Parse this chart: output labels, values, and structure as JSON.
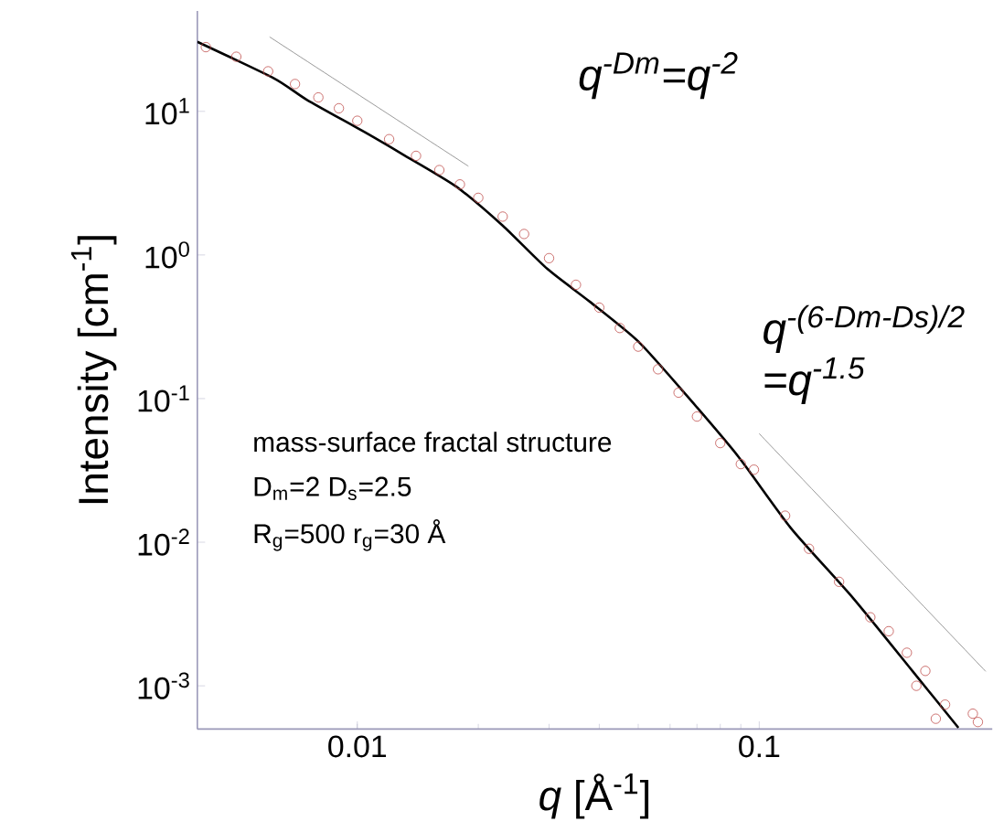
{
  "chart_data": {
    "type": "scatter",
    "xlabel": "*q* [Å$^{-1}$]",
    "ylabel": "Intensity [cm$^{-1}$]",
    "log": "xy",
    "grid": false,
    "xlim": [
      0.004,
      0.38
    ],
    "ylim": [
      0.0005,
      50
    ],
    "xticks": [
      0.01,
      0.1
    ],
    "yticks": [
      {
        "value": 0.001,
        "label": "10$^{-3}$"
      },
      {
        "value": 0.01,
        "label": "10$^{-2}$"
      },
      {
        "value": 0.1,
        "label": "10$^{-1}$"
      },
      {
        "value": 1,
        "label": "10$^{0}$"
      },
      {
        "value": 10,
        "label": "10$^{1}$"
      }
    ],
    "series": [
      {
        "marker": "circle",
        "color": "#c0504d",
        "x": [
          0.0042,
          0.005,
          0.006,
          0.007,
          0.008,
          0.009,
          0.01,
          0.012,
          0.014,
          0.016,
          0.018,
          0.02,
          0.023,
          0.026,
          0.03,
          0.035,
          0.04,
          0.045,
          0.05,
          0.056,
          0.063,
          0.07,
          0.08,
          0.09,
          0.097,
          0.116,
          0.133,
          0.158,
          0.189,
          0.21,
          0.233,
          0.259,
          0.246,
          0.275,
          0.29,
          0.34,
          0.35
        ],
        "values": [
          28,
          24,
          19,
          15.5,
          12.5,
          10.5,
          8.6,
          6.4,
          4.9,
          3.9,
          3.1,
          2.5,
          1.85,
          1.4,
          0.95,
          0.62,
          0.43,
          0.31,
          0.23,
          0.16,
          0.11,
          0.075,
          0.049,
          0.035,
          0.032,
          0.0153,
          0.009,
          0.0053,
          0.003,
          0.0024,
          0.0017,
          0.00127,
          0.001,
          0.00059,
          0.00074,
          0.00064,
          0.00056
        ]
      },
      {
        "type": "line",
        "marker": "none",
        "color": "#000000",
        "x": [
          0.004,
          0.0062,
          0.0075,
          0.0104,
          0.013,
          0.0176,
          0.023,
          0.0297,
          0.038,
          0.05,
          0.067,
          0.089,
          0.12,
          0.171,
          0.241,
          0.313
        ],
        "values": [
          30.5,
          17,
          12,
          7.2,
          5,
          3.0,
          1.6,
          0.8,
          0.47,
          0.25,
          0.1,
          0.039,
          0.0125,
          0.0041,
          0.00126,
          0.00051
        ]
      },
      {
        "type": "line",
        "marker": "none",
        "color": "#808080",
        "x": [
          0.00605,
          0.0189
        ],
        "values": [
          33,
          4.15
        ]
      },
      {
        "type": "line",
        "marker": "none",
        "color": "#808080",
        "x": [
          0.1,
          0.366
        ],
        "values": [
          0.057,
          0.00126
        ]
      }
    ],
    "annotations": [
      "*q*$^{-Dm}$=*q*$^{-2}$",
      "*q*$^{-(6-Dm-Ds)/2}$",
      "=*q*$^{-1.5}$",
      "mass-surface fractal structure",
      "D$_{m}$=2 D$_{s}$=2.5",
      "R$_{g}$=500 r$_{g}$=30 Å"
    ]
  }
}
